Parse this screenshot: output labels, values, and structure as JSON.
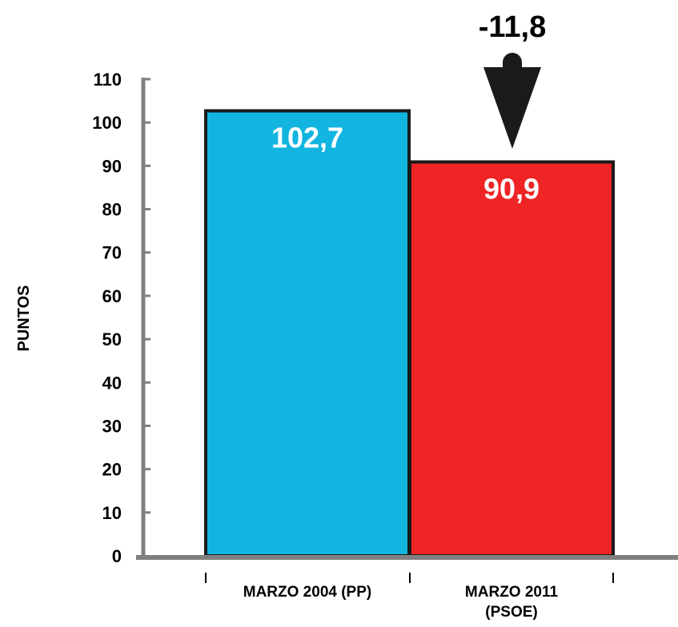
{
  "chart_data": {
    "type": "bar",
    "categories": [
      "MARZO 2004 (PP)",
      "MARZO 2011 (PSOE)"
    ],
    "category_lines": [
      [
        "MARZO 2004 (PP)"
      ],
      [
        "MARZO 2011",
        "(PSOE)"
      ]
    ],
    "values": [
      102.7,
      90.9
    ],
    "value_labels": [
      "102,7",
      "90,9"
    ],
    "bar_colors": [
      "#12b5e0",
      "#ee2524"
    ],
    "ylabel": "PUNTOS",
    "ylim": [
      0,
      110
    ],
    "yticks": [
      0,
      10,
      20,
      30,
      40,
      50,
      60,
      70,
      80,
      90,
      100,
      110
    ],
    "annotation": {
      "text": "-11,8",
      "arrow": "down",
      "target_category": "MARZO 2011 (PSOE)"
    },
    "grid": false,
    "legend": "none",
    "axis_color": "#808080"
  }
}
